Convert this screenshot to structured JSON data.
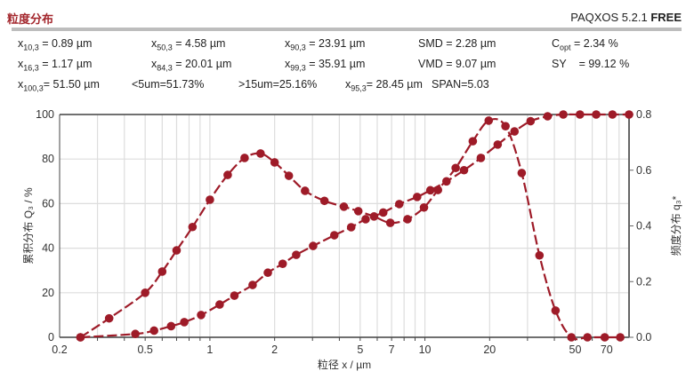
{
  "header": {
    "title": "粒度分布",
    "app": "PAQXOS 5.2.1",
    "edition": "FREE"
  },
  "stats": [
    {
      "sym": "x",
      "sub": "10,3",
      "val": " = 0.89 µm"
    },
    {
      "sym": "x",
      "sub": "50,3",
      "val": " = 4.58 µm"
    },
    {
      "sym": "x",
      "sub": "90,3",
      "val": " = 23.91 µm"
    },
    {
      "sym": "SMD",
      "sub": "",
      "val": " = 2.28 µm"
    },
    {
      "sym": "C",
      "sub": "opt",
      "val": " = 2.34 %"
    },
    {
      "sym": "x",
      "sub": "16,3",
      "val": " = 1.17 µm"
    },
    {
      "sym": "x",
      "sub": "84,3",
      "val": " = 20.01 µm"
    },
    {
      "sym": "x",
      "sub": "99,3",
      "val": " = 35.91 µm"
    },
    {
      "sym": "VMD",
      "sub": "",
      "val": " = 9.07 µm"
    },
    {
      "sym": "SY",
      "sub": "",
      "val": "    = 99.12 %"
    },
    {
      "sym": "x",
      "sub": "100,3",
      "val": "= 51.50 µm"
    },
    {
      "sym": "<5um=51.73%",
      "sub": "",
      "val": ""
    },
    {
      "sym": ">15um=25.16%",
      "sub": "",
      "val": ""
    },
    {
      "sym": "x",
      "sub": "95,3",
      "val": "= 28.45 µm"
    },
    {
      "sym": "SPAN=5.03",
      "sub": "",
      "val": ""
    }
  ],
  "chart_data": {
    "type": "line",
    "xlabel": "粒径 x / µm",
    "ylabel": "累积分布 Q₃ / %",
    "y2label": "频度分布 q₃*",
    "xscale": "log",
    "xlim": [
      0.2,
      89
    ],
    "ylim": [
      0,
      100
    ],
    "y2lim": [
      0,
      0.8
    ],
    "xticks": [
      "0.2",
      "0.5",
      "1",
      "2",
      "5",
      "7",
      "10",
      "20",
      "50",
      "70"
    ],
    "yticks": [
      "0",
      "20",
      "40",
      "60",
      "80",
      "100"
    ],
    "y2ticks": [
      "0.0",
      "0.2",
      "0.4",
      "0.6",
      "0.8"
    ],
    "grid": true,
    "color": "#9e1b28",
    "series": [
      {
        "axis": "right",
        "x": [
          0.25,
          0.34,
          0.5,
          0.6,
          0.7,
          0.83,
          1.0,
          1.21,
          1.45,
          1.72,
          2.0,
          2.33,
          2.77,
          3.41,
          4.2,
          4.9,
          5.8,
          6.9,
          8.3,
          9.9,
          11.5,
          13.9,
          16.7,
          19.8,
          23.7,
          28.2,
          34.1,
          40.5,
          48,
          57,
          68.6,
          81
        ],
        "y": [
          0,
          0.068,
          0.16,
          0.236,
          0.312,
          0.396,
          0.494,
          0.583,
          0.644,
          0.66,
          0.628,
          0.58,
          0.526,
          0.49,
          0.469,
          0.453,
          0.434,
          0.411,
          0.424,
          0.466,
          0.529,
          0.608,
          0.704,
          0.778,
          0.758,
          0.59,
          0.294,
          0.096,
          0,
          0,
          0,
          0
        ]
      },
      {
        "axis": "left",
        "x": [
          0.25,
          0.45,
          0.55,
          0.66,
          0.76,
          0.91,
          1.11,
          1.3,
          1.58,
          1.86,
          2.18,
          2.52,
          3.02,
          3.79,
          4.54,
          5.3,
          6.4,
          7.6,
          9.2,
          10.6,
          12.6,
          15.2,
          18.2,
          21.8,
          26.1,
          31,
          37.2,
          44,
          52.6,
          62.6,
          74.5,
          89
        ],
        "y": [
          0,
          1.5,
          3,
          5,
          6.8,
          10,
          14.7,
          18.7,
          23.5,
          29,
          33,
          37,
          41,
          45.8,
          49.4,
          53,
          56,
          59.8,
          63,
          66,
          70,
          75,
          80.5,
          86.5,
          92.4,
          97,
          99.2,
          100,
          100,
          100,
          100,
          100
        ]
      }
    ]
  }
}
